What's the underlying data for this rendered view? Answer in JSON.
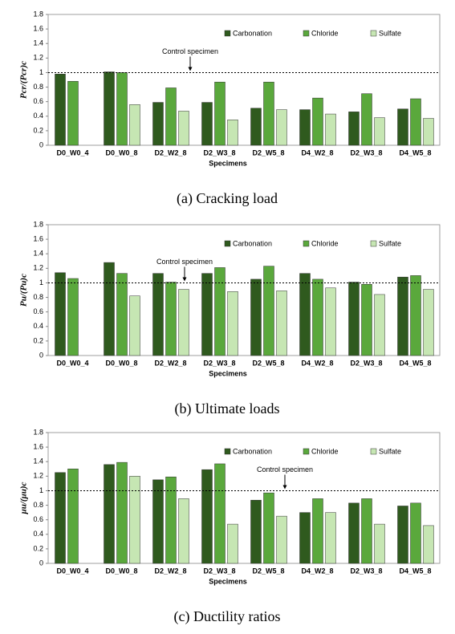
{
  "chart_data": [
    {
      "type": "bar",
      "caption": "(a) Cracking load",
      "ylabel": "Pcr/(Pcr)c",
      "xlabel": "Specimens",
      "annotation": "Control specimen",
      "reference": 1,
      "categories": [
        "D0_W0_4",
        "D0_W0_8",
        "D2_W2_8",
        "D2_W3_8",
        "D2_W5_8",
        "D4_W2_8",
        "D2_W3_8",
        "D4_W5_8"
      ],
      "series": [
        {
          "name": "Carbonation",
          "color": "#2f5a1e",
          "values": [
            0.98,
            1.01,
            0.59,
            0.59,
            0.51,
            0.49,
            0.46,
            0.5
          ]
        },
        {
          "name": "Chloride",
          "color": "#5aa83c",
          "values": [
            0.88,
            1.0,
            0.79,
            0.87,
            0.87,
            0.65,
            0.71,
            0.64
          ]
        },
        {
          "name": "Sulfate",
          "color": "#c6e6b3",
          "values": [
            null,
            0.56,
            0.47,
            0.35,
            0.49,
            0.43,
            0.38,
            0.37
          ]
        }
      ],
      "ylim": [
        0,
        1.8
      ],
      "yticks": [
        0,
        0.2,
        0.4,
        0.6,
        0.8,
        1,
        1.2,
        1.4,
        1.6,
        1.8
      ]
    },
    {
      "type": "bar",
      "caption": "(b) Ultimate loads",
      "ylabel": "Pu/(Pu)c",
      "xlabel": "Specimens",
      "annotation": "Control specimen",
      "reference": 1,
      "categories": [
        "D0_W0_4",
        "D0_W0_8",
        "D2_W2_8",
        "D2_W3_8",
        "D2_W5_8",
        "D4_W2_8",
        "D2_W3_8",
        "D4_W5_8"
      ],
      "series": [
        {
          "name": "Carbonation",
          "color": "#2f5a1e",
          "values": [
            1.14,
            1.28,
            1.13,
            1.13,
            1.05,
            1.13,
            1.01,
            1.08
          ]
        },
        {
          "name": "Chloride",
          "color": "#5aa83c",
          "values": [
            1.06,
            1.13,
            1.01,
            1.21,
            1.23,
            1.05,
            0.98,
            1.1
          ]
        },
        {
          "name": "Sulfate",
          "color": "#c6e6b3",
          "values": [
            null,
            0.82,
            0.91,
            0.88,
            0.89,
            0.93,
            0.84,
            0.91
          ]
        }
      ],
      "ylim": [
        0,
        1.8
      ],
      "yticks": [
        0,
        0.2,
        0.4,
        0.6,
        0.8,
        1,
        1.2,
        1.4,
        1.6,
        1.8
      ]
    },
    {
      "type": "bar",
      "caption": "(c) Ductility ratios",
      "ylabel": "μu/(μu)c",
      "xlabel": "Specimens",
      "annotation": "Control specimen",
      "reference": 1,
      "categories": [
        "D0_W0_4",
        "D0_W0_8",
        "D2_W2_8",
        "D2_W3_8",
        "D2_W5_8",
        "D4_W2_8",
        "D2_W3_8",
        "D4_W5_8"
      ],
      "series": [
        {
          "name": "Carbonation",
          "color": "#2f5a1e",
          "values": [
            1.25,
            1.36,
            1.15,
            1.29,
            0.87,
            0.7,
            0.83,
            0.79
          ]
        },
        {
          "name": "Chloride",
          "color": "#5aa83c",
          "values": [
            1.3,
            1.39,
            1.19,
            1.37,
            0.97,
            0.89,
            0.89,
            0.83
          ]
        },
        {
          "name": "Sulfate",
          "color": "#c6e6b3",
          "values": [
            null,
            1.2,
            0.89,
            0.54,
            0.65,
            0.7,
            0.54,
            0.52
          ]
        }
      ],
      "ylim": [
        0,
        1.8
      ],
      "yticks": [
        0,
        0.2,
        0.4,
        0.6,
        0.8,
        1,
        1.2,
        1.4,
        1.6,
        1.8
      ]
    }
  ]
}
